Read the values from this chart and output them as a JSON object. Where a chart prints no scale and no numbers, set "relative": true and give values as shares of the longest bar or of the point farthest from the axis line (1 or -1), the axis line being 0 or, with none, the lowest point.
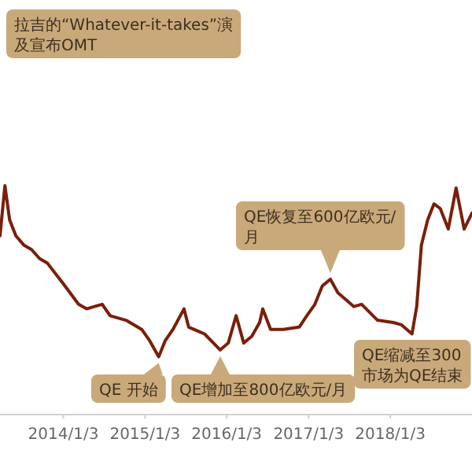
{
  "chart_data": {
    "type": "line",
    "relative": true,
    "xlim": [
      "2013-03-26",
      "2019-01-03"
    ],
    "xticks": [
      {
        "value": "2014-01-03",
        "label": "2014/1/3"
      },
      {
        "value": "2015-01-03",
        "label": "2015/1/3"
      },
      {
        "value": "2016-01-03",
        "label": "2016/1/3"
      },
      {
        "value": "2017-01-03",
        "label": "2017/1/3"
      },
      {
        "value": "2018-01-03",
        "label": "2018/1/3"
      }
    ],
    "x": [
      "2013-03-26",
      "2013-04-17",
      "2013-05-08",
      "2013-06-05",
      "2013-07-10",
      "2013-08-14",
      "2013-09-19",
      "2013-10-24",
      "2014-01-03",
      "2014-03-12",
      "2014-04-17",
      "2014-05-22",
      "2014-06-26",
      "2014-07-31",
      "2014-10-10",
      "2014-12-19",
      "2015-01-24",
      "2015-03-05",
      "2015-04-03",
      "2015-05-08",
      "2015-06-26",
      "2015-07-17",
      "2015-09-26",
      "2015-12-05",
      "2016-01-10",
      "2016-02-14",
      "2016-03-19",
      "2016-04-24",
      "2016-05-29",
      "2016-06-12",
      "2016-07-17",
      "2016-09-12",
      "2016-11-22",
      "2016-12-26",
      "2017-01-31",
      "2017-03-05",
      "2017-04-10",
      "2017-05-14",
      "2017-06-19",
      "2017-07-24",
      "2017-08-28",
      "2017-11-07",
      "2018-01-17",
      "2018-02-22",
      "2018-04-10",
      "2018-05-01",
      "2018-05-22",
      "2018-06-19",
      "2018-07-17",
      "2018-08-14",
      "2018-09-19",
      "2018-10-24",
      "2018-11-29",
      "2019-01-03"
    ],
    "series": [
      {
        "color": "#7a1f0a",
        "values": [
          0.78,
          1,
          0.85,
          0.78,
          0.74,
          0.72,
          0.68,
          0.66,
          0.57,
          0.48,
          0.46,
          0.47,
          0.48,
          0.43,
          0.41,
          0.37,
          0.32,
          0.25,
          0.32,
          0.37,
          0.46,
          0.38,
          0.35,
          0.28,
          0.31,
          0.43,
          0.31,
          0.34,
          0.4,
          0.46,
          0.37,
          0.37,
          0.38,
          0.43,
          0.48,
          0.56,
          0.59,
          0.53,
          0.5,
          0.47,
          0.48,
          0.41,
          0.4,
          0.39,
          0.35,
          0.47,
          0.74,
          0.85,
          0.92,
          0.9,
          0.81,
          0.99,
          0.81,
          0.88
        ]
      }
    ],
    "annotations": [
      "拉吉的“Whatever-it-takes”演及宣布OMT",
      {
        "text": "QE恢复至600亿欧元/月",
        "x": "2017-04-10",
        "y": 0.59
      },
      {
        "text": "QE 开始",
        "x": "2015-03-05",
        "y": 0.25
      },
      {
        "text": "QE增加至800亿欧元/月",
        "x": "2015-12-05",
        "y": 0.28
      },
      {
        "text": "QE缩减至300市场为QE结束",
        "x": "2018-04-10",
        "y": 0.35
      }
    ],
    "grid": false,
    "marker": "none",
    "line_style": "solid"
  }
}
